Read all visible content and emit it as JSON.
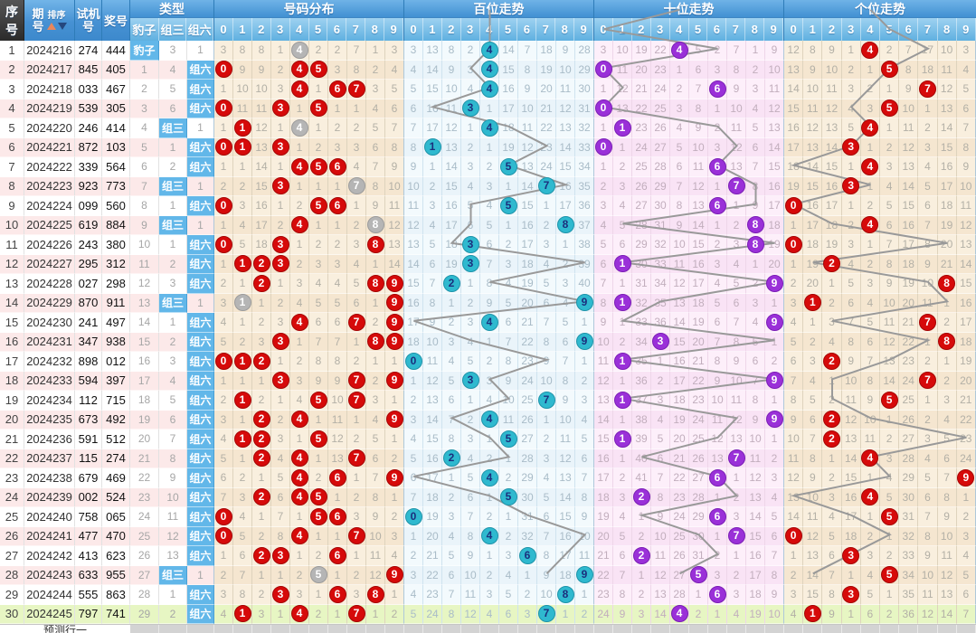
{
  "header": {
    "seq": "序号",
    "period": "期号",
    "sort_label": "排序",
    "test": "试机号",
    "test_lines": [
      "试机",
      "号"
    ],
    "period_lines": [
      "期",
      "号"
    ],
    "prize": "奖号",
    "type": "类型",
    "type_cols": [
      "豹子",
      "组三",
      "组六"
    ],
    "sections": [
      {
        "key": "fenbu",
        "title": "号码分布"
      },
      {
        "key": "bai",
        "title": "百位走势"
      },
      {
        "key": "shi",
        "title": "十位走势"
      },
      {
        "key": "ge",
        "title": "个位走势"
      }
    ],
    "digits": [
      "0",
      "1",
      "2",
      "3",
      "4",
      "5",
      "6",
      "7",
      "8",
      "9"
    ]
  },
  "footer": {
    "label": "预测行一"
  },
  "colors": {
    "hit_red": "#d60a0a",
    "repeat_gray": "#b5b5b5",
    "hit_cyan": "#2fb9cf",
    "hit_purple": "#9a30d8",
    "type_highlight_blue": "#62b7e9",
    "row_even_pink": "#fce9e9",
    "row_last_green": "#e7f6c3",
    "section_cream": "#f8eedb",
    "section_blue": "#f1f9fd",
    "section_pink": "#fbeef9",
    "trend_line_gray": "#999999",
    "header_blue": "#4691d3"
  },
  "rows": [
    {
      "seq": "1",
      "period": "2024216",
      "test": "274",
      "prize": "444",
      "type": [
        "豹子",
        "3",
        "1"
      ],
      "hl": 0,
      "fenbu": "3,8,8,1,g4,2,2,7,1,3",
      "bai": "3,13,8,2,h4,14,7,18,9,28",
      "shi": "3,10,19,22,h4,5,2,7,1,9",
      "ge": "12,8,9,1,h4,2,7,17,10,3"
    },
    {
      "seq": "2",
      "period": "2024217",
      "test": "845",
      "prize": "405",
      "type": [
        "1",
        "4",
        "组六"
      ],
      "hl": 2,
      "fenbu": "h0,9,9,2,h4,h5,3,8,2,4",
      "bai": "4,14,9,3,h4,15,8,19,10,29",
      "shi": "h0,11,20,23,1,6,3,8,2,10",
      "ge": "13,9,10,2,1,h5,8,18,11,4"
    },
    {
      "seq": "3",
      "period": "2024218",
      "test": "033",
      "prize": "467",
      "type": [
        "2",
        "5",
        "组六"
      ],
      "hl": 2,
      "fenbu": "1,10,10,3,h4,1,h6,h7,3,5",
      "bai": "5,15,10,4,h4,16,9,20,11,30",
      "shi": "1,12,21,24,2,7,h6,9,3,11",
      "ge": "14,10,11,3,2,1,9,h7,12,5"
    },
    {
      "seq": "4",
      "period": "2024219",
      "test": "539",
      "prize": "305",
      "type": [
        "3",
        "6",
        "组六"
      ],
      "hl": 2,
      "fenbu": "h0,11,11,h3,1,h5,1,1,4,6",
      "bai": "6,16,11,h3,1,17,10,21,12,31",
      "shi": "h0,13,22,25,3,8,1,10,4,12",
      "ge": "15,11,12,4,3,h5,10,1,13,6"
    },
    {
      "seq": "5",
      "period": "2024220",
      "test": "246",
      "prize": "414",
      "type": [
        "4",
        "组三",
        "1"
      ],
      "hl": 1,
      "fenbu": "1,h1,12,1,g4,1,2,2,5,7",
      "bai": "7,17,12,1,h4,18,11,22,13,32",
      "shi": "1,h1,23,26,4,9,2,11,5,13",
      "ge": "16,12,13,5,h4,1,11,2,14,7"
    },
    {
      "seq": "6",
      "period": "2024221",
      "test": "872",
      "prize": "103",
      "type": [
        "5",
        "1",
        "组六"
      ],
      "hl": 2,
      "fenbu": "h0,h1,13,h3,1,2,3,3,6,8",
      "bai": "8,h1,13,2,1,19,12,23,14,33",
      "shi": "h0,1,24,27,5,10,3,12,6,14",
      "ge": "17,13,14,h3,1,2,12,3,15,8"
    },
    {
      "seq": "7",
      "period": "2024222",
      "test": "339",
      "prize": "564",
      "type": [
        "6",
        "2",
        "组六"
      ],
      "hl": 2,
      "fenbu": "1,1,14,1,h4,h5,h6,4,7,9",
      "bai": "9,1,14,3,2,h5,13,24,15,34",
      "shi": "1,2,25,28,6,11,h6,13,7,15",
      "ge": "18,14,15,1,h4,3,13,4,16,9"
    },
    {
      "seq": "8",
      "period": "2024223",
      "test": "923",
      "prize": "773",
      "type": [
        "7",
        "组三",
        "1"
      ],
      "hl": 1,
      "fenbu": "2,2,15,h3,1,1,1,g7,8,10",
      "bai": "10,2,15,4,3,1,14,h7,16,35",
      "shi": "2,3,26,29,7,12,1,h7,8,16",
      "ge": "19,15,16,h3,1,4,14,5,17,10"
    },
    {
      "seq": "9",
      "period": "2024224",
      "test": "099",
      "prize": "560",
      "type": [
        "8",
        "1",
        "组六"
      ],
      "hl": 2,
      "fenbu": "h0,3,16,1,2,h5,h6,1,9,11",
      "bai": "11,3,16,5,4,h5,15,1,17,36",
      "shi": "3,4,27,30,8,13,h6,1,9,17",
      "ge": "h0,16,17,1,2,5,15,6,18,11"
    },
    {
      "seq": "10",
      "period": "2024225",
      "test": "619",
      "prize": "884",
      "type": [
        "9",
        "组三",
        "1"
      ],
      "hl": 1,
      "fenbu": "1,4,17,2,h4,1,1,2,g8,12",
      "bai": "12,4,17,6,5,1,16,2,h8,37",
      "shi": "4,5,28,31,9,14,1,2,h8,18",
      "ge": "1,17,18,2,h4,6,16,7,19,12"
    },
    {
      "seq": "11",
      "period": "2024226",
      "test": "243",
      "prize": "380",
      "type": [
        "10",
        "1",
        "组六"
      ],
      "hl": 2,
      "fenbu": "h0,5,18,h3,1,2,2,3,h8,13",
      "bai": "13,5,18,h3,6,2,17,3,1,38",
      "shi": "5,6,29,32,10,15,2,3,h8,19",
      "ge": "h0,18,19,3,1,7,17,8,20,13"
    },
    {
      "seq": "12",
      "period": "2024227",
      "test": "295",
      "prize": "312",
      "type": [
        "11",
        "2",
        "组六"
      ],
      "hl": 2,
      "fenbu": "1,h1,h2,h3,2,3,3,4,1,14",
      "bai": "14,6,19,h3,7,3,18,4,2,39",
      "shi": "6,h1,30,33,11,16,3,4,1,20",
      "ge": "1,19,h2,4,2,8,18,9,21,14"
    },
    {
      "seq": "13",
      "period": "2024228",
      "test": "027",
      "prize": "298",
      "type": [
        "12",
        "3",
        "组六"
      ],
      "hl": 2,
      "fenbu": "2,1,h2,1,3,4,4,5,h8,h9",
      "bai": "15,7,h2,1,8,4,19,5,3,40",
      "shi": "7,1,31,34,12,17,4,5,2,h9",
      "ge": "2,20,1,5,3,9,19,10,h8,15"
    },
    {
      "seq": "14",
      "period": "2024229",
      "test": "870",
      "prize": "911",
      "type": [
        "13",
        "组三",
        "1"
      ],
      "hl": 1,
      "fenbu": "3,g1,1,2,4,5,5,6,1,h9",
      "bai": "16,8,1,2,9,5,20,6,4,h9",
      "shi": "8,h1,32,35,13,18,5,6,3,1",
      "ge": "3,h1,2,6,4,10,20,11,1,16"
    },
    {
      "seq": "15",
      "period": "2024230",
      "test": "241",
      "prize": "497",
      "type": [
        "14",
        "1",
        "组六"
      ],
      "hl": 2,
      "fenbu": "4,1,2,3,h4,6,6,h7,2,h9",
      "bai": "17,9,2,3,h4,6,21,7,5,1",
      "shi": "9,1,33,36,14,19,6,7,4,h9",
      "ge": "4,1,3,7,5,11,21,h7,2,17"
    },
    {
      "seq": "16",
      "period": "2024231",
      "test": "347",
      "prize": "938",
      "type": [
        "15",
        "2",
        "组六"
      ],
      "hl": 2,
      "fenbu": "5,2,3,h3,1,7,7,1,h8,h9",
      "bai": "18,10,3,4,1,7,22,8,6,h9",
      "shi": "10,2,34,h3,15,20,7,8,5,1",
      "ge": "5,2,4,8,6,12,22,1,h8,18"
    },
    {
      "seq": "17",
      "period": "2024232",
      "test": "898",
      "prize": "012",
      "type": [
        "16",
        "3",
        "组六"
      ],
      "hl": 2,
      "fenbu": "h0,h1,h2,1,2,8,8,2,1,1",
      "bai": "h0,11,4,5,2,8,23,9,7,1",
      "shi": "11,h1,35,1,16,21,8,9,6,2",
      "ge": "6,3,h2,9,7,13,23,2,1,19"
    },
    {
      "seq": "18",
      "period": "2024233",
      "test": "594",
      "prize": "397",
      "type": [
        "17",
        "4",
        "组六"
      ],
      "hl": 2,
      "fenbu": "1,1,1,h3,3,9,9,h7,2,h9",
      "bai": "1,12,5,h3,3,9,24,10,8,2",
      "shi": "12,1,36,2,17,22,9,10,7,h9",
      "ge": "7,4,1,10,8,14,24,h7,2,20"
    },
    {
      "seq": "19",
      "period": "2024234",
      "test": "112",
      "prize": "715",
      "type": [
        "18",
        "5",
        "组六"
      ],
      "hl": 2,
      "fenbu": "2,h1,2,1,4,h5,10,h7,3,1",
      "bai": "2,13,6,1,4,10,25,h7,9,3",
      "shi": "13,h1,37,3,18,23,10,11,8,1",
      "ge": "8,5,2,11,9,h5,25,1,3,21"
    },
    {
      "seq": "20",
      "period": "2024235",
      "test": "673",
      "prize": "492",
      "type": [
        "19",
        "6",
        "组六"
      ],
      "hl": 2,
      "fenbu": "3,1,h2,2,h4,1,11,1,4,h9",
      "bai": "3,14,7,2,h4,11,26,1,10,4",
      "shi": "14,1,38,4,19,24,11,12,9,h9",
      "ge": "9,6,h2,12,10,1,26,2,4,22"
    },
    {
      "seq": "21",
      "period": "2024236",
      "test": "591",
      "prize": "512",
      "type": [
        "20",
        "7",
        "组六"
      ],
      "hl": 2,
      "fenbu": "4,h1,h2,3,1,h5,12,2,5,1",
      "bai": "4,15,8,3,1,h5,27,2,11,5",
      "shi": "15,h1,39,5,20,25,12,13,10,1",
      "ge": "10,7,h2,13,11,2,27,3,5,23"
    },
    {
      "seq": "22",
      "period": "2024237",
      "test": "115",
      "prize": "274",
      "type": [
        "21",
        "8",
        "组六"
      ],
      "hl": 2,
      "fenbu": "5,1,h2,4,h4,1,13,h7,6,2",
      "bai": "5,16,h2,4,2,1,28,3,12,6",
      "shi": "16,1,40,6,21,26,13,h7,11,2",
      "ge": "11,8,1,14,h4,3,28,4,6,24"
    },
    {
      "seq": "23",
      "period": "2024238",
      "test": "679",
      "prize": "469",
      "type": [
        "22",
        "9",
        "组六"
      ],
      "hl": 2,
      "fenbu": "6,2,1,5,h4,2,h6,1,7,h9",
      "bai": "6,17,1,5,h4,2,29,4,13,7",
      "shi": "17,2,41,7,22,27,h6,1,12,3",
      "ge": "12,9,2,15,1,4,29,5,7,h9"
    },
    {
      "seq": "24",
      "period": "2024239",
      "test": "002",
      "prize": "524",
      "type": [
        "23",
        "10",
        "组六"
      ],
      "hl": 2,
      "fenbu": "7,3,h2,6,h4,h5,1,2,8,1",
      "bai": "7,18,2,6,1,h5,30,5,14,8",
      "shi": "18,3,h2,8,23,28,1,2,13,4",
      "ge": "13,10,3,16,h4,5,30,6,8,1"
    },
    {
      "seq": "25",
      "period": "2024240",
      "test": "758",
      "prize": "065",
      "type": [
        "24",
        "11",
        "组六"
      ],
      "hl": 2,
      "fenbu": "h0,4,1,7,1,h5,h6,3,9,2",
      "bai": "h0,19,3,7,2,1,31,6,15,9",
      "shi": "19,4,1,9,24,29,h6,3,14,5",
      "ge": "14,11,4,17,1,h5,31,7,9,2"
    },
    {
      "seq": "26",
      "period": "2024241",
      "test": "477",
      "prize": "470",
      "type": [
        "25",
        "12",
        "组六"
      ],
      "hl": 2,
      "fenbu": "h0,5,2,8,h4,1,1,h7,10,3",
      "bai": "1,20,4,8,h4,2,32,7,16,10",
      "shi": "20,5,2,10,25,30,1,h7,15,6",
      "ge": "h0,12,5,18,2,1,32,8,10,3"
    },
    {
      "seq": "27",
      "period": "2024242",
      "test": "413",
      "prize": "623",
      "type": [
        "26",
        "13",
        "组六"
      ],
      "hl": 2,
      "fenbu": "1,6,h2,h3,1,2,h6,1,11,4",
      "bai": "2,21,5,9,1,3,h6,8,17,11",
      "shi": "21,6,h2,11,26,31,2,1,16,7",
      "ge": "1,13,6,h3,3,2,33,9,11,4"
    },
    {
      "seq": "28",
      "period": "2024243",
      "test": "633",
      "prize": "955",
      "type": [
        "27",
        "组三",
        "1"
      ],
      "hl": 1,
      "fenbu": "2,7,1,1,2,g5,1,2,12,h9",
      "bai": "3,22,6,10,2,4,1,9,18,h9",
      "shi": "22,7,1,12,27,h5,3,2,17,8",
      "ge": "2,14,7,1,4,h5,34,10,12,5"
    },
    {
      "seq": "29",
      "period": "2024244",
      "test": "555",
      "prize": "863",
      "type": [
        "28",
        "1",
        "组六"
      ],
      "hl": 2,
      "fenbu": "3,8,2,h3,3,1,h6,3,h8,1",
      "bai": "4,23,7,11,3,5,2,10,h8,1",
      "shi": "23,8,2,13,28,1,h6,3,18,9",
      "ge": "3,15,8,h3,5,1,35,11,13,6"
    },
    {
      "seq": "30",
      "period": "2024245",
      "test": "797",
      "prize": "741",
      "type": [
        "29",
        "2",
        "组六"
      ],
      "hl": 2,
      "fenbu": "4,h1,3,1,h4,2,1,h7,1,2",
      "bai": "5,24,8,12,4,6,3,h7,1,2",
      "shi": "24,9,3,14,h4,2,1,4,19,10",
      "ge": "4,h1,9,1,6,2,36,12,14,7"
    }
  ]
}
